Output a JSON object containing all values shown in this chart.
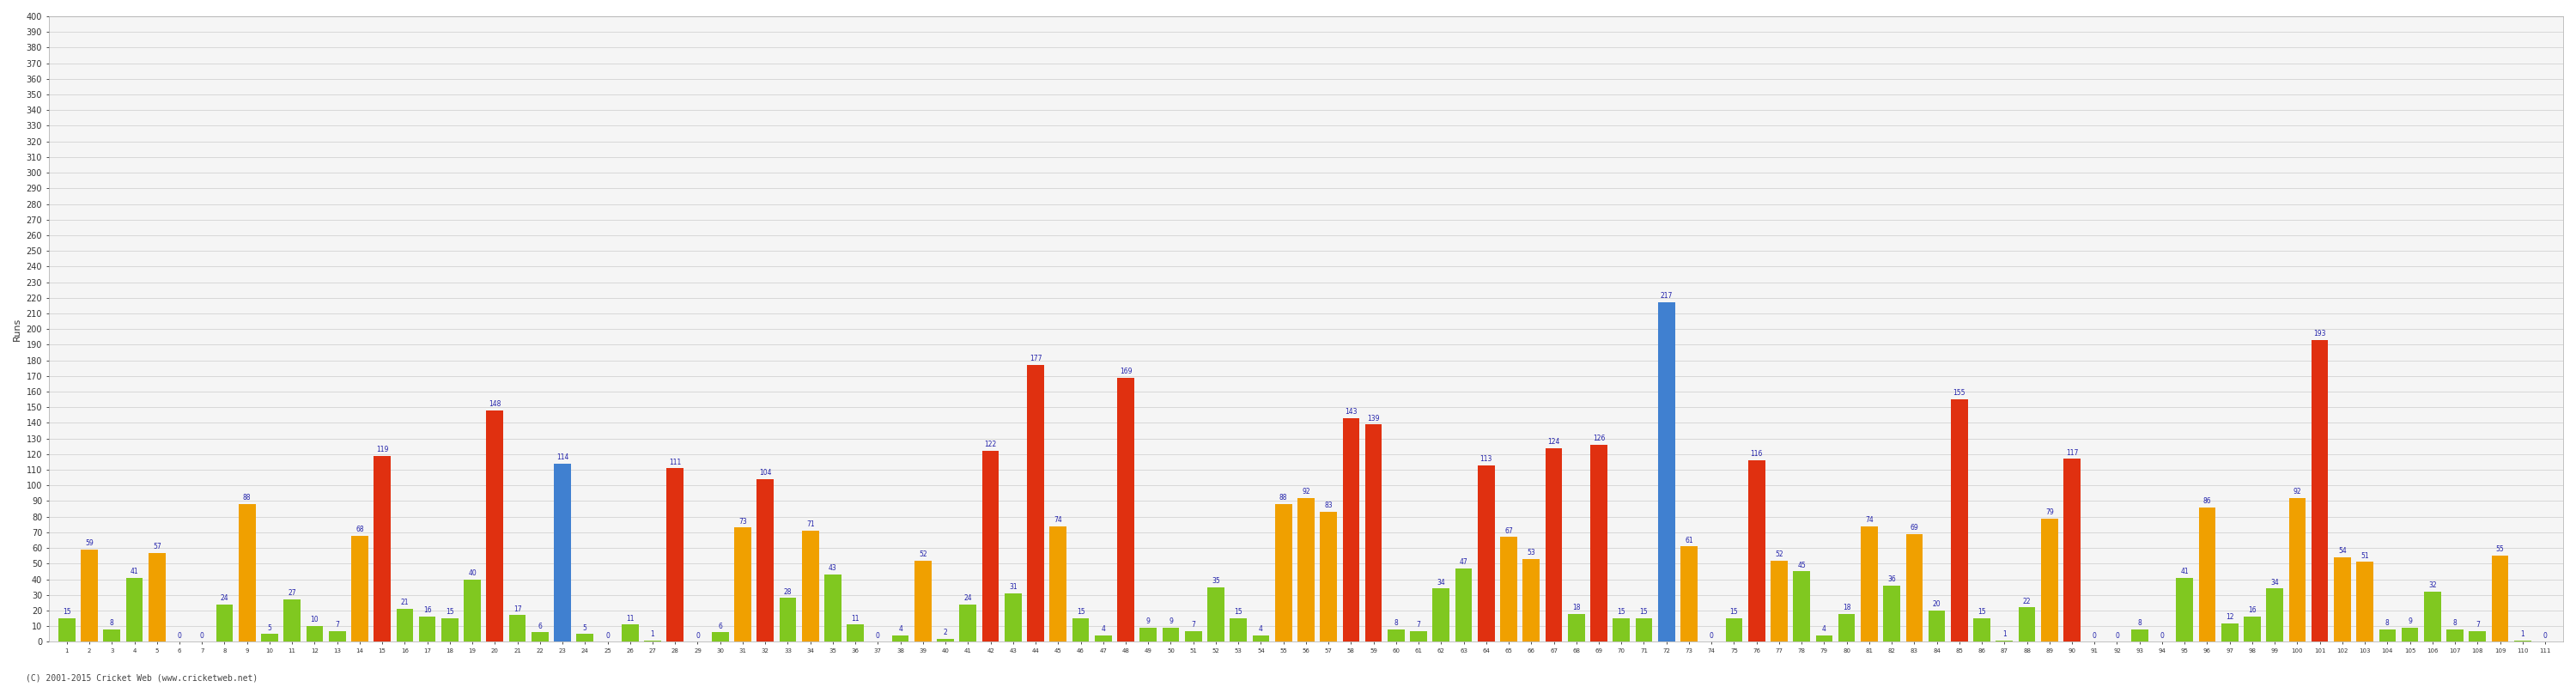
{
  "ylabel": "Runs",
  "footer": "(C) 2001-2015 Cricket Web (www.cricketweb.net)",
  "ylim": [
    0,
    400
  ],
  "yticks": [
    0,
    10,
    20,
    30,
    40,
    50,
    60,
    70,
    80,
    90,
    100,
    110,
    120,
    130,
    140,
    150,
    160,
    170,
    180,
    190,
    200,
    210,
    220,
    230,
    240,
    250,
    260,
    270,
    280,
    290,
    300,
    310,
    320,
    330,
    340,
    350,
    360,
    370,
    380,
    390,
    400
  ],
  "bar_colors": {
    "green": "#80c820",
    "orange": "#f0a000",
    "red": "#e03010",
    "blue": "#4080d0"
  },
  "innings": [
    {
      "n": 1,
      "score": 15,
      "color": "green"
    },
    {
      "n": 2,
      "score": 59,
      "color": "orange"
    },
    {
      "n": 3,
      "score": 8,
      "color": "green"
    },
    {
      "n": 4,
      "score": 41,
      "color": "green"
    },
    {
      "n": 5,
      "score": 57,
      "color": "orange"
    },
    {
      "n": 6,
      "score": 0,
      "color": "green"
    },
    {
      "n": 7,
      "score": 0,
      "color": "green"
    },
    {
      "n": 8,
      "score": 24,
      "color": "green"
    },
    {
      "n": 9,
      "score": 88,
      "color": "orange"
    },
    {
      "n": 10,
      "score": 5,
      "color": "green"
    },
    {
      "n": 11,
      "score": 27,
      "color": "green"
    },
    {
      "n": 12,
      "score": 10,
      "color": "green"
    },
    {
      "n": 13,
      "score": 7,
      "color": "green"
    },
    {
      "n": 14,
      "score": 68,
      "color": "orange"
    },
    {
      "n": 15,
      "score": 119,
      "color": "red"
    },
    {
      "n": 16,
      "score": 21,
      "color": "green"
    },
    {
      "n": 17,
      "score": 16,
      "color": "green"
    },
    {
      "n": 18,
      "score": 15,
      "color": "green"
    },
    {
      "n": 19,
      "score": 40,
      "color": "green"
    },
    {
      "n": 20,
      "score": 148,
      "color": "red"
    },
    {
      "n": 21,
      "score": 17,
      "color": "green"
    },
    {
      "n": 22,
      "score": 6,
      "color": "green"
    },
    {
      "n": 23,
      "score": 114,
      "color": "blue"
    },
    {
      "n": 24,
      "score": 5,
      "color": "green"
    },
    {
      "n": 25,
      "score": 0,
      "color": "green"
    },
    {
      "n": 26,
      "score": 11,
      "color": "green"
    },
    {
      "n": 27,
      "score": 1,
      "color": "green"
    },
    {
      "n": 28,
      "score": 111,
      "color": "red"
    },
    {
      "n": 29,
      "score": 0,
      "color": "green"
    },
    {
      "n": 30,
      "score": 6,
      "color": "green"
    },
    {
      "n": 31,
      "score": 73,
      "color": "orange"
    },
    {
      "n": 32,
      "score": 104,
      "color": "red"
    },
    {
      "n": 33,
      "score": 28,
      "color": "green"
    },
    {
      "n": 34,
      "score": 71,
      "color": "orange"
    },
    {
      "n": 35,
      "score": 43,
      "color": "green"
    },
    {
      "n": 36,
      "score": 11,
      "color": "green"
    },
    {
      "n": 37,
      "score": 0,
      "color": "green"
    },
    {
      "n": 38,
      "score": 4,
      "color": "green"
    },
    {
      "n": 39,
      "score": 52,
      "color": "orange"
    },
    {
      "n": 40,
      "score": 2,
      "color": "green"
    },
    {
      "n": 41,
      "score": 24,
      "color": "green"
    },
    {
      "n": 42,
      "score": 122,
      "color": "red"
    },
    {
      "n": 43,
      "score": 31,
      "color": "green"
    },
    {
      "n": 44,
      "score": 177,
      "color": "red"
    },
    {
      "n": 45,
      "score": 74,
      "color": "orange"
    },
    {
      "n": 46,
      "score": 15,
      "color": "green"
    },
    {
      "n": 47,
      "score": 4,
      "color": "green"
    },
    {
      "n": 48,
      "score": 169,
      "color": "red"
    },
    {
      "n": 49,
      "score": 9,
      "color": "green"
    },
    {
      "n": 50,
      "score": 9,
      "color": "green"
    },
    {
      "n": 51,
      "score": 7,
      "color": "green"
    },
    {
      "n": 52,
      "score": 35,
      "color": "green"
    },
    {
      "n": 53,
      "score": 15,
      "color": "green"
    },
    {
      "n": 54,
      "score": 4,
      "color": "green"
    },
    {
      "n": 55,
      "score": 88,
      "color": "orange"
    },
    {
      "n": 56,
      "score": 92,
      "color": "orange"
    },
    {
      "n": 57,
      "score": 83,
      "color": "orange"
    },
    {
      "n": 58,
      "score": 143,
      "color": "red"
    },
    {
      "n": 59,
      "score": 139,
      "color": "red"
    },
    {
      "n": 60,
      "score": 8,
      "color": "green"
    },
    {
      "n": 61,
      "score": 7,
      "color": "green"
    },
    {
      "n": 62,
      "score": 34,
      "color": "green"
    },
    {
      "n": 63,
      "score": 47,
      "color": "green"
    },
    {
      "n": 64,
      "score": 113,
      "color": "red"
    },
    {
      "n": 65,
      "score": 67,
      "color": "orange"
    },
    {
      "n": 66,
      "score": 53,
      "color": "orange"
    },
    {
      "n": 67,
      "score": 124,
      "color": "red"
    },
    {
      "n": 68,
      "score": 18,
      "color": "green"
    },
    {
      "n": 69,
      "score": 126,
      "color": "red"
    },
    {
      "n": 70,
      "score": 15,
      "color": "green"
    },
    {
      "n": 71,
      "score": 15,
      "color": "green"
    },
    {
      "n": 72,
      "score": 217,
      "color": "blue"
    },
    {
      "n": 73,
      "score": 61,
      "color": "orange"
    },
    {
      "n": 74,
      "score": 0,
      "color": "green"
    },
    {
      "n": 75,
      "score": 15,
      "color": "green"
    },
    {
      "n": 76,
      "score": 116,
      "color": "red"
    },
    {
      "n": 77,
      "score": 52,
      "color": "orange"
    },
    {
      "n": 78,
      "score": 45,
      "color": "green"
    },
    {
      "n": 79,
      "score": 4,
      "color": "green"
    },
    {
      "n": 80,
      "score": 18,
      "color": "green"
    },
    {
      "n": 81,
      "score": 74,
      "color": "orange"
    },
    {
      "n": 82,
      "score": 36,
      "color": "green"
    },
    {
      "n": 83,
      "score": 69,
      "color": "orange"
    },
    {
      "n": 84,
      "score": 20,
      "color": "green"
    },
    {
      "n": 85,
      "score": 155,
      "color": "red"
    },
    {
      "n": 86,
      "score": 15,
      "color": "green"
    },
    {
      "n": 87,
      "score": 1,
      "color": "green"
    },
    {
      "n": 88,
      "score": 22,
      "color": "green"
    },
    {
      "n": 89,
      "score": 79,
      "color": "orange"
    },
    {
      "n": 90,
      "score": 117,
      "color": "red"
    },
    {
      "n": 91,
      "score": 0,
      "color": "green"
    },
    {
      "n": 92,
      "score": 0,
      "color": "green"
    },
    {
      "n": 93,
      "score": 8,
      "color": "green"
    },
    {
      "n": 94,
      "score": 0,
      "color": "green"
    },
    {
      "n": 95,
      "score": 41,
      "color": "green"
    },
    {
      "n": 96,
      "score": 86,
      "color": "orange"
    },
    {
      "n": 97,
      "score": 12,
      "color": "green"
    },
    {
      "n": 98,
      "score": 16,
      "color": "green"
    },
    {
      "n": 99,
      "score": 34,
      "color": "green"
    },
    {
      "n": 100,
      "score": 92,
      "color": "orange"
    },
    {
      "n": 101,
      "score": 193,
      "color": "red"
    },
    {
      "n": 102,
      "score": 54,
      "color": "orange"
    },
    {
      "n": 103,
      "score": 51,
      "color": "orange"
    },
    {
      "n": 104,
      "score": 8,
      "color": "green"
    },
    {
      "n": 105,
      "score": 9,
      "color": "green"
    },
    {
      "n": 106,
      "score": 32,
      "color": "green"
    },
    {
      "n": 107,
      "score": 8,
      "color": "green"
    },
    {
      "n": 108,
      "score": 7,
      "color": "green"
    },
    {
      "n": 109,
      "score": 55,
      "color": "orange"
    },
    {
      "n": 110,
      "score": 1,
      "color": "green"
    },
    {
      "n": 111,
      "score": 0,
      "color": "green"
    }
  ]
}
